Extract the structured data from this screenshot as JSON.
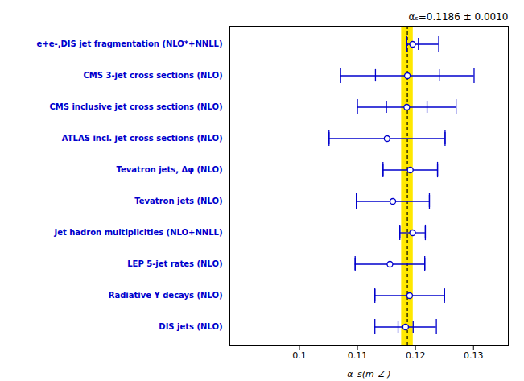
{
  "chart_data": {
    "type": "errorbar",
    "orientation": "horizontal",
    "xlabel": "α_s(m_Z )",
    "xlim": [
      0.088,
      0.136
    ],
    "xticks": [
      0.1,
      0.11,
      0.12,
      0.13
    ],
    "grid": false,
    "categories": [
      "e+e-,DIS jet fragmentation (NLO*+NNLL)",
      "CMS 3-jet cross sections (NLO)",
      "CMS inclusive jet cross sections (NLO)",
      "ATLAS incl. jet cross sections (NLO)",
      "Tevatron jets, Δφ (NLO)",
      "Tevatron jets (NLO)",
      "Jet hadron multiplicities (NLO+NNLL)",
      "LEP 5-jet rates (NLO)",
      "Radiative Υ decays (NLO)",
      "DIS jets (NLO)"
    ],
    "values": [
      0.1195,
      0.1186,
      0.1185,
      0.1151,
      0.1191,
      0.1161,
      0.1195,
      0.1156,
      0.119,
      0.1183
    ],
    "stat_err_low": [
      0.001,
      0.0055,
      0.0035,
      0.01,
      0.0047,
      0.0063,
      0.0022,
      0.006,
      0.006,
      0.0013
    ],
    "stat_err_high": [
      0.001,
      0.0055,
      0.0035,
      0.01,
      0.0047,
      0.0063,
      0.0022,
      0.006,
      0.006,
      0.0013
    ],
    "theo_err_low": [
      0.0,
      0.006,
      0.005,
      0.0,
      0.0,
      0.0,
      0.0,
      0.0,
      0.0,
      0.004
    ],
    "theo_err_high": [
      0.0035,
      0.006,
      0.005,
      0.0,
      0.0,
      0.0,
      0.0,
      0.0,
      0.0,
      0.004
    ],
    "color": "#0000CC",
    "marker": "open_circle",
    "band": {
      "center": 0.1186,
      "half_width": 0.001,
      "color": "#FFE800"
    },
    "reference_line": {
      "value": 0.1186,
      "line_style": "dashed",
      "color": "#000000"
    },
    "annotations": [
      {
        "text": "αₛ=0.1186 ± 0.0010"
      }
    ]
  }
}
